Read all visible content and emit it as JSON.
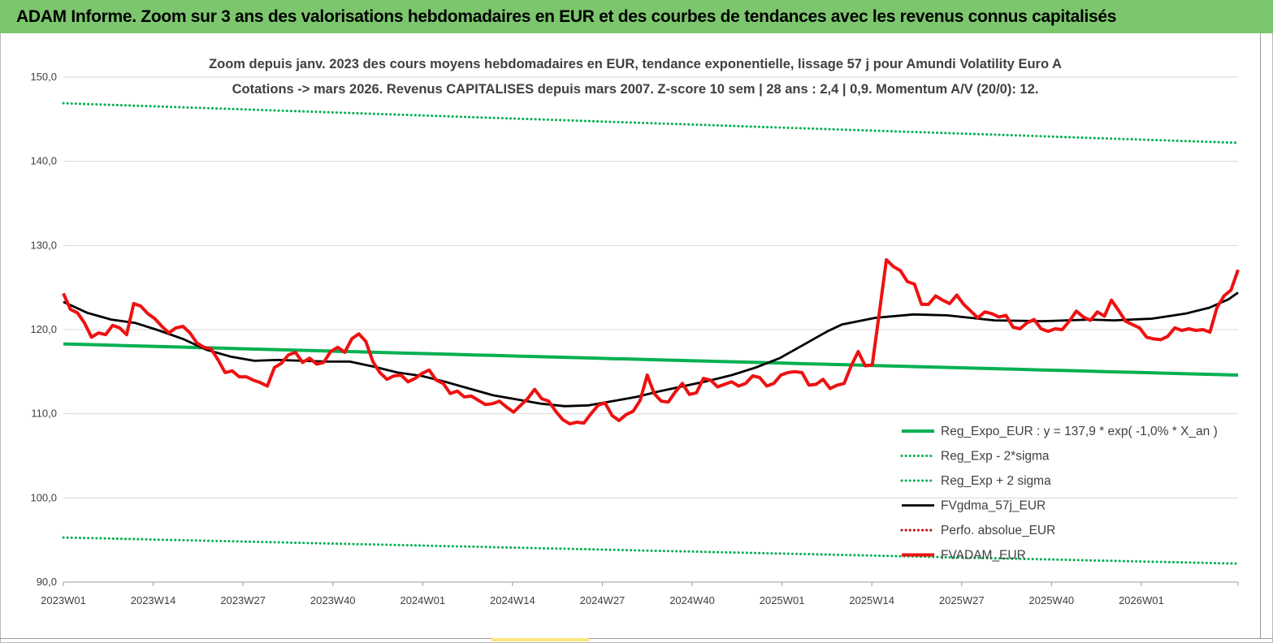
{
  "banner": {
    "title": "ADAM Informe. Zoom sur 3 ans des valorisations hebdomadaires en EUR et des courbes de tendances avec les revenus connus capitalisés"
  },
  "colors": {
    "banner_bg": "#7cc66e",
    "green": "#00b050",
    "green_dotted": "#00b050",
    "black": "#000000",
    "red": "#ee1111",
    "red_dotted": "#c00000"
  },
  "chart_data": {
    "type": "line",
    "title": "Zoom depuis janv. 2023 des cours moyens hebdomadaires en EUR, tendance exponentielle, lissage 57 j pour Amundi Volatility Euro A",
    "subtitle": "Cotations -> mars 2026. Revenus CAPITALISES depuis mars 2007. Z-score 10 sem | 28 ans : 2,4 | 0,9. Momentum A/V (20/0): 12.",
    "ylim": [
      90,
      150
    ],
    "y_ticks": [
      "90,0",
      "100,0",
      "110,0",
      "120,0",
      "130,0",
      "140,0",
      "150,0"
    ],
    "x_ticks": [
      "2023W01",
      "2023W14",
      "2023W27",
      "2023W40",
      "2024W01",
      "2024W14",
      "2024W27",
      "2024W40",
      "2025W01",
      "2025W14",
      "2025W27",
      "2025W40",
      "2026W01"
    ],
    "grid": "horizontal",
    "legend_position": "bottom-right",
    "weeks_count": 170,
    "series": [
      {
        "name": "Reg_Expo_EUR : y = 137,9 * exp( -1,0% *  X_an )",
        "style": "solid-thick",
        "color": "#00b050",
        "start": 118.3,
        "end": 114.6
      },
      {
        "name": "Reg_Exp - 2*sigma",
        "style": "dotted",
        "color": "#00b050",
        "start": 95.3,
        "end": 92.2
      },
      {
        "name": "Reg_Exp + 2 sigma",
        "style": "dotted",
        "color": "#00b050",
        "start": 146.9,
        "end": 142.2
      },
      {
        "name": "FVgdma_57j_EUR",
        "style": "solid",
        "color": "#000000",
        "points": [
          [
            0,
            123.3
          ],
          [
            5,
            122.0
          ],
          [
            10,
            121.2
          ],
          [
            15,
            120.8
          ],
          [
            20,
            119.9
          ],
          [
            25,
            118.9
          ],
          [
            30,
            117.6
          ],
          [
            35,
            116.8
          ],
          [
            40,
            116.3
          ],
          [
            45,
            116.4
          ],
          [
            50,
            116.3
          ],
          [
            55,
            116.2
          ],
          [
            60,
            116.2
          ],
          [
            65,
            115.6
          ],
          [
            70,
            114.9
          ],
          [
            75,
            114.5
          ],
          [
            80,
            113.8
          ],
          [
            85,
            113.0
          ],
          [
            90,
            112.2
          ],
          [
            95,
            111.7
          ],
          [
            100,
            111.2
          ],
          [
            105,
            110.9
          ],
          [
            110,
            111.0
          ],
          [
            115,
            111.5
          ],
          [
            120,
            112.0
          ],
          [
            125,
            112.7
          ],
          [
            130,
            113.3
          ],
          [
            135,
            113.9
          ],
          [
            140,
            114.6
          ],
          [
            145,
            115.5
          ],
          [
            150,
            116.6
          ],
          [
            155,
            118.2
          ],
          [
            160,
            119.8
          ],
          [
            163,
            120.6
          ],
          [
            170,
            121.4
          ],
          [
            178,
            121.8
          ],
          [
            185,
            121.7
          ],
          [
            195,
            121.1
          ],
          [
            205,
            121.0
          ],
          [
            215,
            121.2
          ],
          [
            220,
            121.1
          ],
          [
            228,
            121.3
          ],
          [
            235,
            121.9
          ],
          [
            240,
            122.6
          ],
          [
            244,
            123.6
          ],
          [
            246,
            124.4
          ]
        ]
      },
      {
        "name": "Perfo. absolue_EUR",
        "style": "dotted",
        "color": "#c00000"
      },
      {
        "name": "FVADAM_EUR",
        "style": "solid-thick",
        "color": "#ee1111",
        "points": [
          [
            0,
            124.3
          ],
          [
            2,
            122.4
          ],
          [
            4,
            122.0
          ],
          [
            6,
            120.8
          ],
          [
            8,
            119.1
          ],
          [
            10,
            119.6
          ],
          [
            12,
            119.4
          ],
          [
            14,
            120.5
          ],
          [
            16,
            120.2
          ],
          [
            18,
            119.4
          ],
          [
            20,
            123.1
          ],
          [
            22,
            122.8
          ],
          [
            24,
            121.9
          ],
          [
            26,
            121.3
          ],
          [
            28,
            120.4
          ],
          [
            30,
            119.6
          ],
          [
            32,
            120.2
          ],
          [
            34,
            120.4
          ],
          [
            36,
            119.6
          ],
          [
            38,
            118.4
          ],
          [
            40,
            117.9
          ],
          [
            42,
            117.7
          ],
          [
            44,
            116.4
          ],
          [
            46,
            114.9
          ],
          [
            48,
            115.1
          ],
          [
            50,
            114.4
          ],
          [
            52,
            114.4
          ],
          [
            54,
            114.0
          ],
          [
            56,
            113.7
          ],
          [
            58,
            113.3
          ],
          [
            60,
            115.5
          ],
          [
            62,
            116.0
          ],
          [
            64,
            117.0
          ],
          [
            66,
            117.3
          ],
          [
            68,
            116.1
          ],
          [
            70,
            116.6
          ],
          [
            72,
            115.9
          ],
          [
            74,
            116.1
          ],
          [
            76,
            117.4
          ],
          [
            78,
            117.9
          ],
          [
            80,
            117.3
          ],
          [
            82,
            118.9
          ],
          [
            84,
            119.5
          ],
          [
            86,
            118.6
          ],
          [
            88,
            116.2
          ],
          [
            90,
            114.9
          ],
          [
            92,
            114.1
          ],
          [
            94,
            114.5
          ],
          [
            96,
            114.6
          ],
          [
            98,
            113.8
          ],
          [
            100,
            114.2
          ],
          [
            102,
            114.8
          ],
          [
            104,
            115.2
          ],
          [
            106,
            114.0
          ],
          [
            108,
            113.6
          ],
          [
            110,
            112.4
          ],
          [
            112,
            112.7
          ],
          [
            114,
            112.0
          ],
          [
            116,
            112.1
          ],
          [
            118,
            111.6
          ],
          [
            120,
            111.1
          ],
          [
            122,
            111.2
          ],
          [
            124,
            111.5
          ],
          [
            126,
            110.8
          ],
          [
            128,
            110.2
          ],
          [
            130,
            111.0
          ],
          [
            132,
            111.8
          ],
          [
            134,
            112.9
          ],
          [
            136,
            111.8
          ],
          [
            138,
            111.5
          ],
          [
            140,
            110.3
          ],
          [
            142,
            109.3
          ],
          [
            144,
            108.8
          ],
          [
            146,
            109.0
          ],
          [
            148,
            108.9
          ],
          [
            150,
            110.0
          ],
          [
            152,
            111.0
          ],
          [
            154,
            111.3
          ],
          [
            156,
            109.8
          ],
          [
            158,
            109.2
          ],
          [
            160,
            109.9
          ],
          [
            162,
            110.3
          ],
          [
            164,
            111.6
          ],
          [
            166,
            114.6
          ],
          [
            168,
            112.4
          ],
          [
            170,
            111.5
          ],
          [
            172,
            111.4
          ],
          [
            174,
            112.6
          ],
          [
            176,
            113.6
          ],
          [
            178,
            112.3
          ],
          [
            180,
            112.5
          ],
          [
            182,
            114.2
          ],
          [
            184,
            114.0
          ],
          [
            186,
            113.2
          ],
          [
            188,
            113.5
          ],
          [
            190,
            113.8
          ],
          [
            192,
            113.3
          ],
          [
            194,
            113.6
          ],
          [
            196,
            114.5
          ],
          [
            198,
            114.3
          ],
          [
            200,
            113.3
          ],
          [
            202,
            113.6
          ],
          [
            204,
            114.6
          ],
          [
            206,
            114.9
          ],
          [
            208,
            115.0
          ],
          [
            210,
            114.9
          ],
          [
            212,
            113.4
          ],
          [
            214,
            113.5
          ],
          [
            216,
            114.1
          ],
          [
            218,
            113.0
          ],
          [
            220,
            113.4
          ],
          [
            222,
            113.6
          ],
          [
            224,
            115.7
          ],
          [
            226,
            117.4
          ],
          [
            228,
            115.7
          ],
          [
            230,
            115.8
          ],
          [
            232,
            122.0
          ],
          [
            234,
            128.3
          ],
          [
            236,
            127.5
          ],
          [
            238,
            127.0
          ],
          [
            240,
            125.7
          ],
          [
            242,
            125.4
          ],
          [
            244,
            123.0
          ],
          [
            246,
            123.0
          ],
          [
            248,
            124.0
          ],
          [
            250,
            123.5
          ],
          [
            252,
            123.1
          ],
          [
            254,
            124.1
          ],
          [
            256,
            123.0
          ],
          [
            258,
            122.2
          ],
          [
            260,
            121.4
          ],
          [
            262,
            122.1
          ],
          [
            264,
            121.9
          ],
          [
            266,
            121.5
          ],
          [
            268,
            121.7
          ],
          [
            270,
            120.3
          ],
          [
            272,
            120.1
          ],
          [
            274,
            120.8
          ],
          [
            276,
            121.2
          ],
          [
            278,
            120.1
          ],
          [
            280,
            119.8
          ],
          [
            282,
            120.1
          ],
          [
            284,
            120.0
          ],
          [
            286,
            121.0
          ],
          [
            288,
            122.2
          ],
          [
            290,
            121.5
          ],
          [
            292,
            121.1
          ],
          [
            294,
            122.1
          ],
          [
            296,
            121.6
          ],
          [
            298,
            123.5
          ],
          [
            300,
            122.3
          ],
          [
            302,
            121.0
          ],
          [
            304,
            120.6
          ],
          [
            306,
            120.2
          ],
          [
            308,
            119.1
          ],
          [
            310,
            118.9
          ],
          [
            312,
            118.8
          ],
          [
            314,
            119.2
          ],
          [
            316,
            120.2
          ],
          [
            318,
            119.9
          ],
          [
            320,
            120.1
          ],
          [
            322,
            119.9
          ],
          [
            324,
            120.0
          ],
          [
            326,
            119.7
          ],
          [
            328,
            122.6
          ],
          [
            330,
            124.0
          ],
          [
            332,
            124.7
          ],
          [
            334,
            127.1
          ]
        ]
      }
    ]
  }
}
